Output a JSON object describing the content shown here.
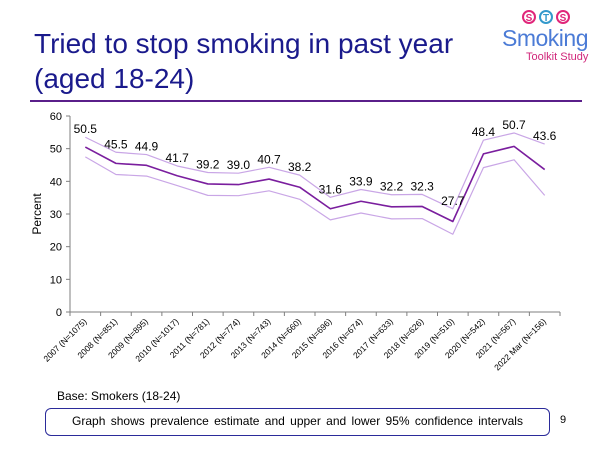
{
  "slide": {
    "title_line1": "Tried to stop smoking in past year",
    "title_line2": "(aged 18-24)",
    "base": "Base: Smokers (18-24)",
    "note": "Graph shows prevalence  estimate and upper and lower 95% confidence intervals",
    "page_number": "9"
  },
  "logo": {
    "letters": [
      "S",
      "T",
      "S"
    ],
    "word": "Smoking",
    "sub": "Toolkit Study"
  },
  "colors": {
    "title": "#1a1a8c",
    "estimate": "#7a1e9e",
    "ci": "#c9a6e6",
    "axis": "#7f7f7f",
    "logo_pink": "#e0267a",
    "logo_blue": "#4b7bd6"
  },
  "chart_data": {
    "type": "line",
    "title": "Tried to stop smoking in past year (aged 18-24)",
    "xlabel": "",
    "ylabel": "Percent",
    "ylim": [
      0,
      60
    ],
    "yticks": [
      0,
      10,
      20,
      30,
      40,
      50,
      60
    ],
    "grid": false,
    "categories": [
      "2007 (N=1075)",
      "2008 (N=851)",
      "2009 (N=895)",
      "2010 (N=1017)",
      "2011 (N=781)",
      "2012 (N=774)",
      "2013 (N=743)",
      "2014 (N=660)",
      "2015 (N=696)",
      "2016 (N=674)",
      "2017 (N=633)",
      "2018 (N=626)",
      "2019 (N=510)",
      "2020 (N=542)",
      "2021 (N=567)",
      "2022 Mar (N=156)"
    ],
    "series": [
      {
        "name": "Estimate",
        "values": [
          50.5,
          45.5,
          44.9,
          41.7,
          39.2,
          39.0,
          40.7,
          38.2,
          31.6,
          33.9,
          32.2,
          32.3,
          27.7,
          48.4,
          50.7,
          43.6
        ],
        "labels": true
      },
      {
        "name": "Upper 95% CI",
        "values": [
          53.5,
          48.9,
          48.2,
          44.7,
          42.7,
          42.5,
          44.3,
          41.9,
          35.1,
          37.5,
          35.9,
          36.0,
          31.6,
          52.6,
          54.8,
          51.4
        ],
        "labels": false
      },
      {
        "name": "Lower 95% CI",
        "values": [
          47.5,
          42.1,
          41.6,
          38.7,
          35.7,
          35.6,
          37.1,
          34.5,
          28.2,
          30.3,
          28.5,
          28.6,
          23.8,
          44.2,
          46.6,
          35.7
        ],
        "labels": false
      }
    ]
  }
}
